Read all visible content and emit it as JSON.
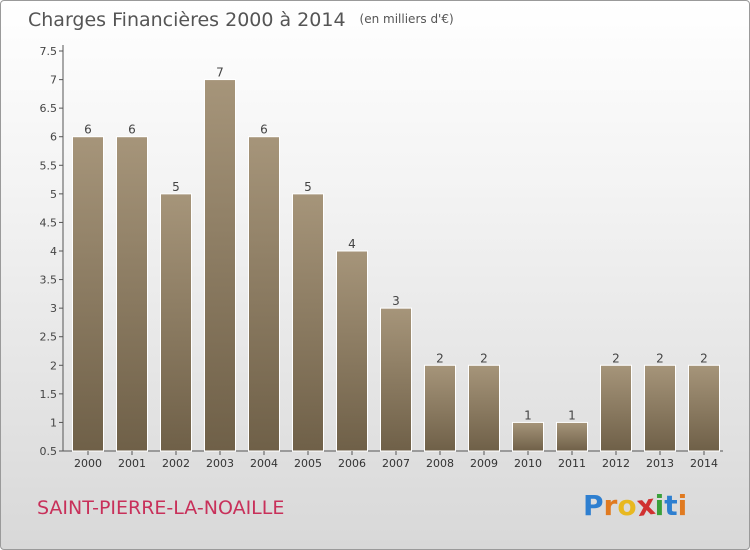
{
  "header": {
    "title": "Charges Financières 2000 à 2014",
    "unit": "(en milliers d'€)"
  },
  "footer": {
    "commune": "SAINT-PIERRE-LA-NOAILLE",
    "logo": {
      "letters": [
        "P",
        "r",
        "o",
        "x",
        "i",
        "t",
        "i"
      ],
      "colors": [
        "#2e7fd0",
        "#e07a20",
        "#e8b820",
        "#d03030",
        "#3aa03a",
        "#2e7fd0",
        "#e07a20"
      ]
    }
  },
  "colors": {
    "bar_light": "#a6957a",
    "bar_dark": "#6f6048",
    "axis": "#555555"
  },
  "chart_data": {
    "type": "bar",
    "title": "Charges Financières 2000 à 2014",
    "subtitle": "(en milliers d'€)",
    "categories": [
      "2000",
      "2001",
      "2002",
      "2003",
      "2004",
      "2005",
      "2006",
      "2007",
      "2008",
      "2009",
      "2010",
      "2011",
      "2012",
      "2013",
      "2014"
    ],
    "values": [
      6,
      6,
      5,
      7,
      6,
      5,
      4,
      3,
      2,
      2,
      1,
      1,
      2,
      2,
      2
    ],
    "data_labels": [
      "6",
      "6",
      "5",
      "7",
      "6",
      "5",
      "4",
      "3",
      "2",
      "2",
      "1",
      "1",
      "2",
      "2",
      "2"
    ],
    "y_ticks": [
      "0.5",
      "1",
      "1.5",
      "2",
      "2.5",
      "3",
      "3.5",
      "4",
      "4.5",
      "5",
      "5.5",
      "6",
      "6.5",
      "7",
      "7.5"
    ],
    "ylim": [
      0.5,
      7.5
    ],
    "grid": false
  }
}
